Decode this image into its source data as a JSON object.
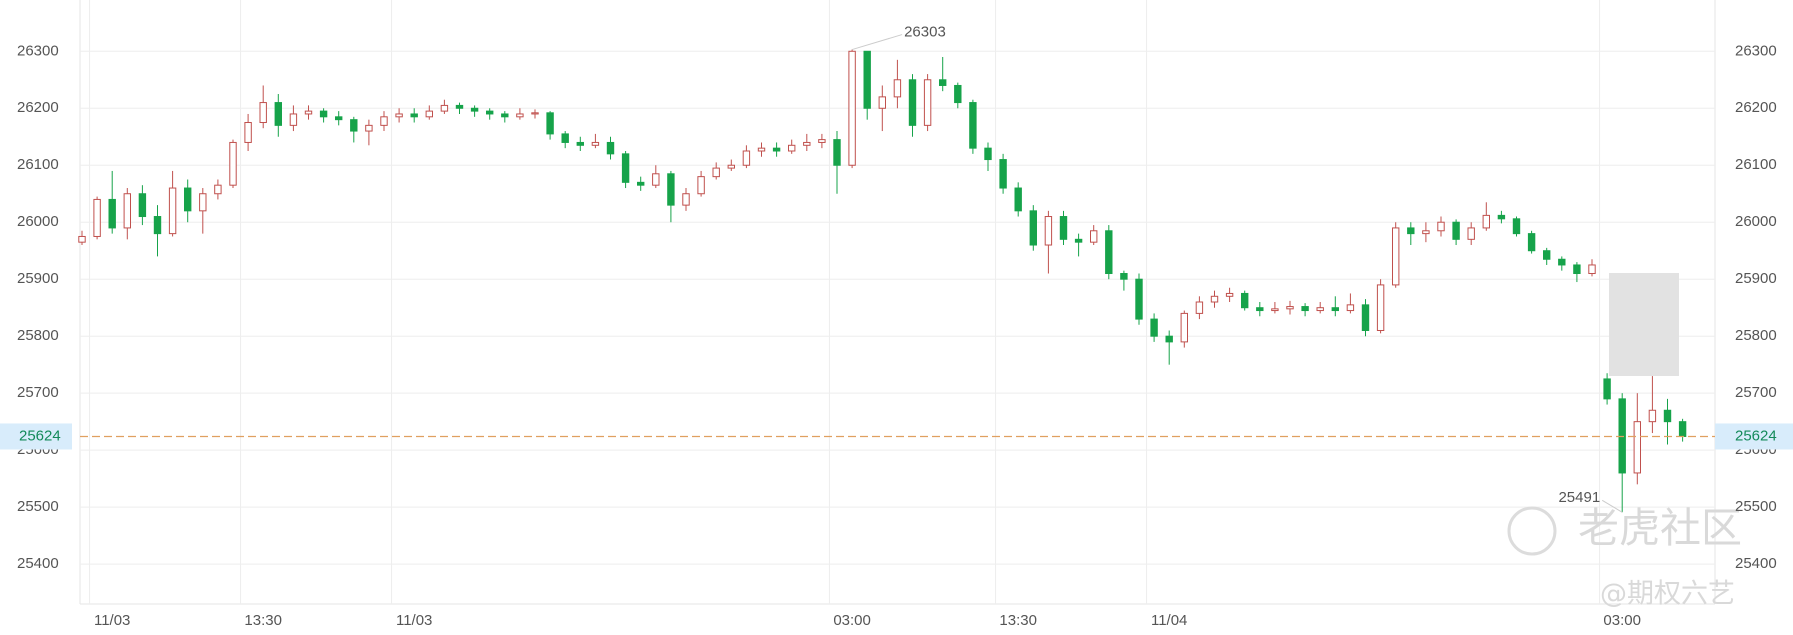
{
  "chart_data": {
    "type": "candlestick",
    "categories": [
      null,
      null,
      "11/03",
      null,
      null,
      null,
      null,
      null,
      null,
      null,
      null,
      null,
      "13:30",
      null,
      null,
      null,
      null,
      null,
      null,
      null,
      null,
      null,
      "11/03",
      null,
      null,
      null,
      null,
      null,
      null,
      null,
      null,
      null,
      null,
      null,
      null,
      null,
      null,
      null,
      null,
      null,
      null,
      null,
      null,
      null,
      null,
      null,
      null,
      null,
      null,
      null,
      null,
      "03:00",
      null,
      null,
      null,
      null,
      null,
      null,
      null,
      null,
      null,
      null,
      "13:30",
      null,
      null,
      null,
      null,
      null,
      null,
      null,
      null,
      null,
      "11/04",
      null,
      null,
      null,
      null,
      null,
      null,
      null,
      null,
      null,
      null,
      null,
      null,
      null,
      null,
      null,
      null,
      null,
      null,
      null,
      null,
      null,
      null,
      null,
      null,
      null,
      null,
      null,
      null,
      null,
      "03:00",
      null,
      null,
      null,
      null
    ],
    "open": [
      25965,
      25975,
      26040,
      25990,
      26050,
      26010,
      25980,
      26060,
      26020,
      26050,
      26065,
      26140,
      26175,
      26210,
      26170,
      26190,
      26195,
      26185,
      26180,
      26160,
      26170,
      26185,
      26190,
      26185,
      26195,
      26205,
      26200,
      26195,
      26190,
      26185,
      26190,
      26192,
      26155,
      26140,
      26135,
      26140,
      26120,
      26070,
      26065,
      26085,
      26030,
      26050,
      26080,
      26095,
      26100,
      26125,
      26130,
      26125,
      26135,
      26140,
      26145,
      26100,
      26300,
      26200,
      26220,
      26250,
      26170,
      26250,
      26240,
      26210,
      26130,
      26110,
      26060,
      26020,
      25960,
      26010,
      25970,
      25965,
      25985,
      25910,
      25900,
      25830,
      25800,
      25790,
      25840,
      25860,
      25870,
      25875,
      25850,
      25845,
      25848,
      25852,
      25845,
      25850,
      25845,
      25855,
      25810,
      25890,
      25990,
      25980,
      25985,
      26000,
      25970,
      25990,
      26012,
      26006,
      25980,
      25950,
      25935,
      25925,
      25910,
      25725,
      25690,
      25560,
      25650,
      25670,
      25650
    ],
    "high": [
      25985,
      26045,
      26090,
      26060,
      26065,
      26030,
      26090,
      26075,
      26060,
      26075,
      26145,
      26190,
      26240,
      26225,
      26205,
      26205,
      26200,
      26195,
      26185,
      26180,
      26195,
      26200,
      26200,
      26205,
      26215,
      26210,
      26205,
      26200,
      26195,
      26200,
      26198,
      26195,
      26160,
      26150,
      26155,
      26150,
      26125,
      26080,
      26100,
      26090,
      26060,
      26090,
      26105,
      26110,
      26135,
      26140,
      26140,
      26145,
      26155,
      26155,
      26160,
      26303,
      26300,
      26240,
      26285,
      26260,
      26260,
      26290,
      26245,
      26215,
      26140,
      26120,
      26070,
      26030,
      26020,
      26020,
      25980,
      25995,
      25995,
      25915,
      25910,
      25840,
      25810,
      25845,
      25870,
      25880,
      25885,
      25880,
      25860,
      25860,
      25862,
      25858,
      25860,
      25870,
      25875,
      25865,
      25900,
      26000,
      26000,
      26000,
      26010,
      26005,
      26000,
      26035,
      26020,
      26010,
      25985,
      25955,
      25940,
      25930,
      25935,
      25735,
      25700,
      25700,
      25730,
      25690,
      25655
    ],
    "low": [
      25960,
      25970,
      25980,
      25970,
      25995,
      25940,
      25975,
      26000,
      25980,
      26040,
      26060,
      26125,
      26165,
      26150,
      26160,
      26180,
      26175,
      26170,
      26140,
      26135,
      26160,
      26175,
      26175,
      26180,
      26190,
      26190,
      26185,
      26180,
      26175,
      26180,
      26182,
      26145,
      26130,
      26125,
      26130,
      26110,
      26060,
      26055,
      26060,
      26000,
      26020,
      26045,
      26075,
      26090,
      26095,
      26115,
      26115,
      26120,
      26125,
      26130,
      26050,
      26095,
      26180,
      26160,
      26200,
      26150,
      26160,
      26230,
      26200,
      26120,
      26090,
      26050,
      26010,
      25950,
      25910,
      25960,
      25940,
      25960,
      25900,
      25880,
      25820,
      25790,
      25750,
      25780,
      25830,
      25850,
      25860,
      25845,
      25835,
      25840,
      25838,
      25835,
      25840,
      25835,
      25840,
      25800,
      25805,
      25885,
      25960,
      25965,
      25975,
      25960,
      25960,
      25985,
      25998,
      25975,
      25945,
      25925,
      25915,
      25895,
      25905,
      25680,
      25491,
      25540,
      25630,
      25610,
      25615
    ],
    "close": [
      25975,
      26040,
      25990,
      26050,
      26010,
      25980,
      26060,
      26020,
      26050,
      26065,
      26140,
      26175,
      26210,
      26170,
      26190,
      26195,
      26185,
      26180,
      26160,
      26170,
      26185,
      26190,
      26185,
      26195,
      26205,
      26200,
      26195,
      26190,
      26185,
      26190,
      26192,
      26155,
      26140,
      26135,
      26140,
      26120,
      26070,
      26065,
      26085,
      26030,
      26050,
      26080,
      26095,
      26100,
      26125,
      26130,
      26125,
      26135,
      26140,
      26145,
      26100,
      26300,
      26200,
      26220,
      26250,
      26170,
      26250,
      26240,
      26210,
      26130,
      26110,
      26060,
      26020,
      25960,
      26010,
      25970,
      25965,
      25985,
      25910,
      25900,
      25830,
      25800,
      25790,
      25840,
      25860,
      25870,
      25875,
      25850,
      25845,
      25848,
      25852,
      25845,
      25850,
      25845,
      25855,
      25810,
      25890,
      25990,
      25980,
      25985,
      26000,
      25970,
      25990,
      26012,
      26006,
      25980,
      25950,
      25935,
      25925,
      25910,
      25925,
      25690,
      25560,
      25650,
      25670,
      25650,
      25624
    ],
    "up_color": "#c0504d",
    "down_color": "#16a34a",
    "last_price_color": "#e0a060",
    "ylim": [
      25330,
      26390
    ],
    "yticks": [
      25400,
      25500,
      25600,
      25700,
      25800,
      25900,
      26000,
      26100,
      26200,
      26300
    ],
    "grid": true,
    "watermarks": [
      "老虎社区",
      "@期权六艺"
    ]
  }
}
